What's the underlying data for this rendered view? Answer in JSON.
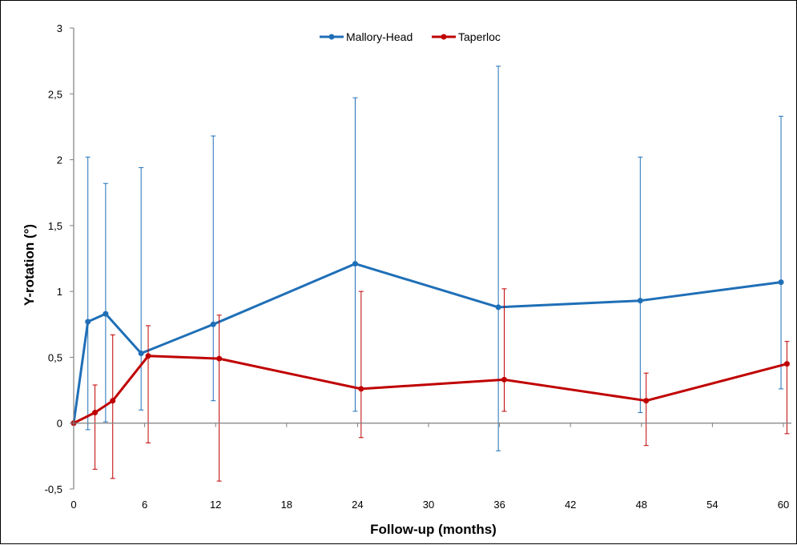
{
  "chart_data": {
    "type": "line",
    "title": "",
    "xlabel": "Follow-up (months)",
    "ylabel": "Y-rotation   (°)",
    "xlim": [
      0,
      60
    ],
    "ylim": [
      -0.5,
      3
    ],
    "x_ticks": [
      "0",
      "6",
      "12",
      "18",
      "24",
      "30",
      "36",
      "42",
      "48",
      "54",
      "60"
    ],
    "y_ticks": [
      "-0,5",
      "0",
      "0,5",
      "1",
      "1,5",
      "2",
      "2,5",
      "3"
    ],
    "grid": false,
    "legend_position": "top-center",
    "series": [
      {
        "name": "Mallory-Head",
        "color": "#1F6FB7",
        "x": [
          0,
          1.2,
          2.7,
          5.7,
          11.8,
          23.8,
          35.9,
          47.9,
          59.8
        ],
        "y": [
          0,
          0.77,
          0.83,
          0.53,
          0.75,
          1.21,
          0.88,
          0.93,
          1.07
        ],
        "err_low": [
          0,
          -0.05,
          0.01,
          0.1,
          0.17,
          0.09,
          -0.21,
          0.08,
          0.26
        ],
        "err_high": [
          0,
          2.02,
          1.82,
          1.94,
          2.18,
          2.47,
          2.71,
          2.02,
          2.33
        ]
      },
      {
        "name": "Taperloc",
        "color": "#C00000",
        "x": [
          0,
          1.8,
          3.3,
          6.3,
          12.3,
          24.3,
          36.4,
          48.4,
          60.3
        ],
        "y": [
          0,
          0.08,
          0.17,
          0.51,
          0.49,
          0.26,
          0.33,
          0.17,
          0.45
        ],
        "err_low": [
          0,
          -0.35,
          -0.42,
          -0.15,
          -0.44,
          -0.11,
          0.09,
          -0.17,
          -0.08
        ],
        "err_high": [
          0,
          0.29,
          0.67,
          0.74,
          0.82,
          1.0,
          1.02,
          0.38,
          0.62
        ]
      }
    ]
  }
}
